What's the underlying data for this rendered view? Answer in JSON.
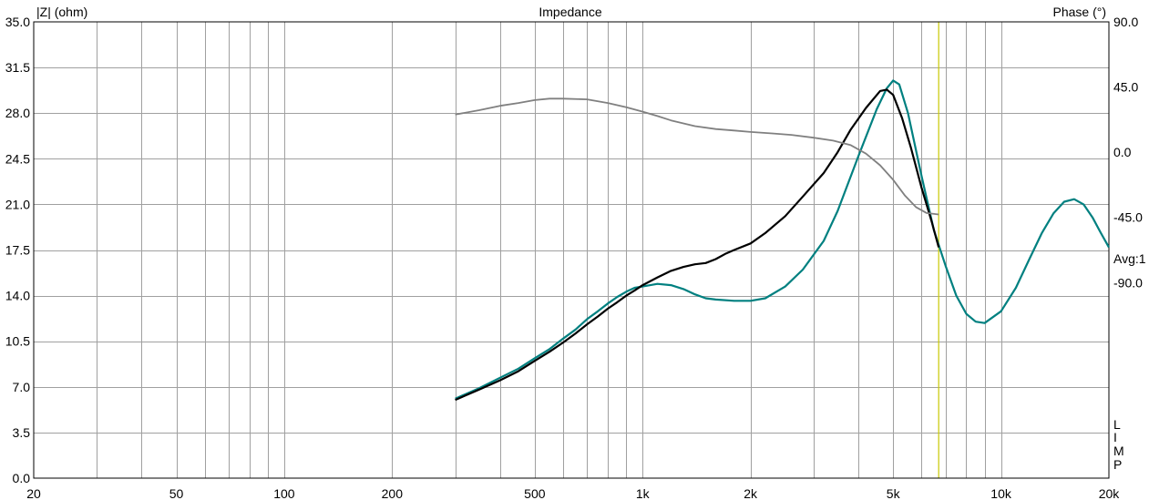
{
  "chart_data": {
    "type": "line",
    "title": "Impedance",
    "ylabel_left": "|Z| (ohm)",
    "ylabel_right": "Phase (°)",
    "x_scale": "log",
    "xlim": [
      20,
      20000
    ],
    "ylim_left": [
      0,
      35
    ],
    "ylim_right": [
      -225,
      90
    ],
    "x_tick_labels": [
      "20",
      "50",
      "100",
      "200",
      "500",
      "1k",
      "2k",
      "5k",
      "10k",
      "20k"
    ],
    "x_tick_values": [
      20,
      50,
      100,
      200,
      500,
      1000,
      2000,
      5000,
      10000,
      20000
    ],
    "y_left_tick_labels": [
      "0.0",
      "3.5",
      "7.0",
      "10.5",
      "14.0",
      "17.5",
      "21.0",
      "24.5",
      "28.0",
      "31.5",
      "35.0"
    ],
    "y_left_tick_values": [
      0,
      3.5,
      7,
      10.5,
      14,
      17.5,
      21,
      24.5,
      28,
      31.5,
      35
    ],
    "y_right_tick_labels": [
      "90.0",
      "45.0",
      "0.0",
      "-45.0",
      "-90.0"
    ],
    "y_right_tick_values": [
      90,
      45,
      0,
      -45,
      -90
    ],
    "avg_label": "Avg:1",
    "side_letters": [
      "L",
      "I",
      "M",
      "P"
    ],
    "grid": true,
    "marker": {
      "x": 6700,
      "color": "#c8c800"
    },
    "series": [
      {
        "axis": "left",
        "color": "#008080",
        "x": [
          300,
          350,
          400,
          450,
          500,
          550,
          600,
          650,
          700,
          750,
          800,
          850,
          900,
          950,
          1000,
          1100,
          1200,
          1300,
          1400,
          1500,
          1600,
          1800,
          2000,
          2200,
          2500,
          2800,
          3200,
          3500,
          4000,
          4500,
          4800,
          5000,
          5200,
          5500,
          6000,
          6500,
          7000,
          7500,
          8000,
          8500,
          9000,
          10000,
          11000,
          12000,
          13000,
          14000,
          15000,
          16000,
          17000,
          18000,
          19000,
          20000
        ],
        "values": [
          6.1,
          6.9,
          7.7,
          8.4,
          9.2,
          9.9,
          10.7,
          11.4,
          12.2,
          12.8,
          13.4,
          13.9,
          14.3,
          14.6,
          14.7,
          14.9,
          14.8,
          14.5,
          14.1,
          13.8,
          13.7,
          13.6,
          13.6,
          13.8,
          14.7,
          16.0,
          18.2,
          20.5,
          24.7,
          28.3,
          29.9,
          30.5,
          30.2,
          28.0,
          23.2,
          19.0,
          16.3,
          14.0,
          12.6,
          12.0,
          11.9,
          12.8,
          14.6,
          16.8,
          18.8,
          20.3,
          21.2,
          21.4,
          21.0,
          20.0,
          18.8,
          17.7
        ]
      },
      {
        "axis": "left",
        "color": "#000000",
        "x": [
          300,
          350,
          400,
          450,
          500,
          550,
          600,
          650,
          700,
          750,
          800,
          850,
          900,
          950,
          1000,
          1100,
          1200,
          1300,
          1400,
          1500,
          1600,
          1700,
          1800,
          2000,
          2200,
          2500,
          2800,
          3200,
          3500,
          3800,
          4200,
          4600,
          4800,
          5000,
          5300,
          5600,
          6000,
          6400,
          6700
        ],
        "values": [
          6.0,
          6.8,
          7.5,
          8.2,
          9.0,
          9.7,
          10.4,
          11.1,
          11.8,
          12.4,
          13.0,
          13.5,
          14.0,
          14.4,
          14.8,
          15.4,
          15.9,
          16.2,
          16.4,
          16.5,
          16.8,
          17.2,
          17.5,
          18.0,
          18.8,
          20.1,
          21.6,
          23.4,
          25.0,
          26.7,
          28.4,
          29.7,
          29.8,
          29.4,
          27.6,
          25.4,
          22.3,
          19.7,
          17.7
        ]
      },
      {
        "axis": "right",
        "color": "#808080",
        "x": [
          300,
          350,
          400,
          450,
          500,
          550,
          600,
          700,
          800,
          900,
          1000,
          1100,
          1200,
          1400,
          1600,
          1800,
          2000,
          2300,
          2600,
          3000,
          3400,
          3800,
          4200,
          4600,
          5000,
          5400,
          5800,
          6200,
          6700
        ],
        "values": [
          26,
          29,
          32,
          34,
          36,
          37,
          37,
          36.5,
          34,
          31,
          28,
          25,
          22,
          18,
          16,
          15,
          14,
          13,
          12,
          10,
          8,
          5,
          -1,
          -9,
          -19,
          -30,
          -38,
          -42,
          -43
        ]
      }
    ]
  }
}
